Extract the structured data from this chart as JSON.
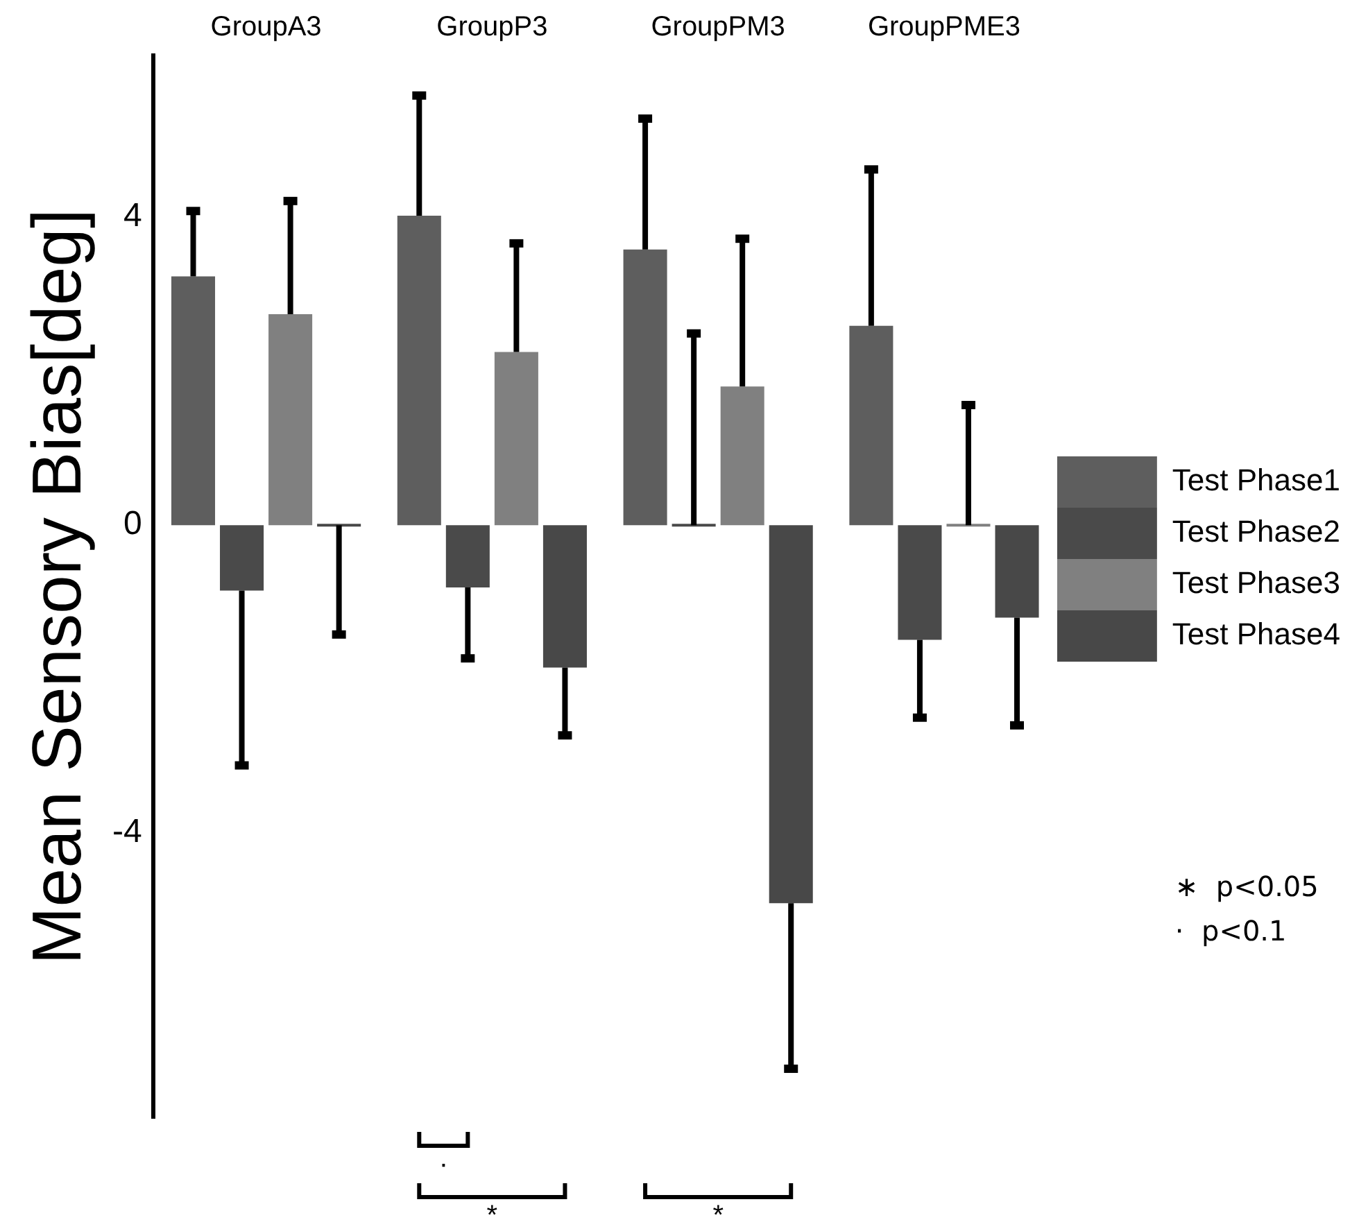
{
  "chart_data": {
    "type": "bar",
    "ylabel": "Mean Sensory Bias[deg]",
    "categories": [
      "GroupA3",
      "GroupP3",
      "GroupPM3",
      "GroupPME3"
    ],
    "series": [
      {
        "name": "Test Phase1",
        "color": "#5e5e5e",
        "values": [
          3.23,
          4.02,
          3.58,
          2.59
        ],
        "errors": [
          [
            3.23,
            4.08
          ],
          [
            4.02,
            5.58
          ],
          [
            3.58,
            5.28
          ],
          [
            2.59,
            4.62
          ]
        ]
      },
      {
        "name": "Test Phase2",
        "color": "#4a4a4a",
        "values": [
          -0.85,
          -0.81,
          0,
          -1.49
        ],
        "errors": [
          [
            -3.12,
            -0.85
          ],
          [
            -1.73,
            -0.81
          ],
          [
            0,
            2.49
          ],
          [
            -2.5,
            -1.49
          ]
        ]
      },
      {
        "name": "Test Phase3",
        "color": "#808080",
        "values": [
          2.74,
          2.25,
          1.8,
          0
        ],
        "errors": [
          [
            2.74,
            4.21
          ],
          [
            2.25,
            3.66
          ],
          [
            1.8,
            3.72
          ],
          [
            0,
            1.56
          ]
        ]
      },
      {
        "name": "Test Phase4",
        "color": "#484848",
        "values": [
          0,
          -1.85,
          -4.91,
          -1.2
        ],
        "errors": [
          [
            -1.42,
            0
          ],
          [
            -2.73,
            -1.85
          ],
          [
            -7.06,
            -4.91
          ],
          [
            -2.6,
            -1.2
          ]
        ]
      }
    ],
    "ylim": [
      -7.7,
      6.1
    ],
    "yticks": [
      -4,
      0,
      4
    ],
    "grid": false,
    "legend": "right",
    "annotations": [
      "·",
      "*",
      "*",
      "∗  p<0.05",
      "·  p<0.1"
    ]
  }
}
